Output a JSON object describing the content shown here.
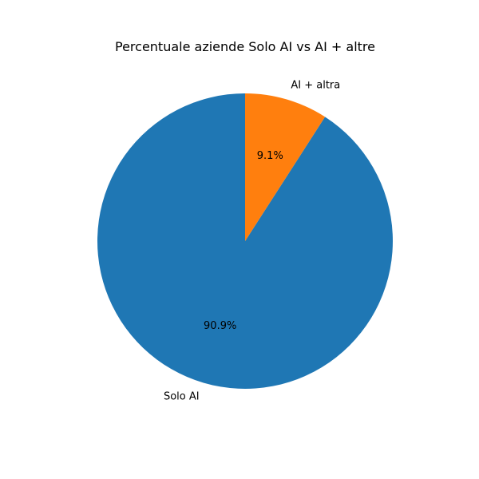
{
  "chart_data": {
    "type": "pie",
    "title": "Percentuale aziende Solo AI vs AI + altre",
    "labels": [
      "Solo AI",
      "AI + altra"
    ],
    "values": [
      90.9,
      9.1
    ],
    "percent_labels": [
      "90.9%",
      "9.1%"
    ],
    "colors": [
      "#1f77b4",
      "#ff7f0e"
    ],
    "start_angle_deg": 90,
    "direction": "counterclockwise"
  }
}
